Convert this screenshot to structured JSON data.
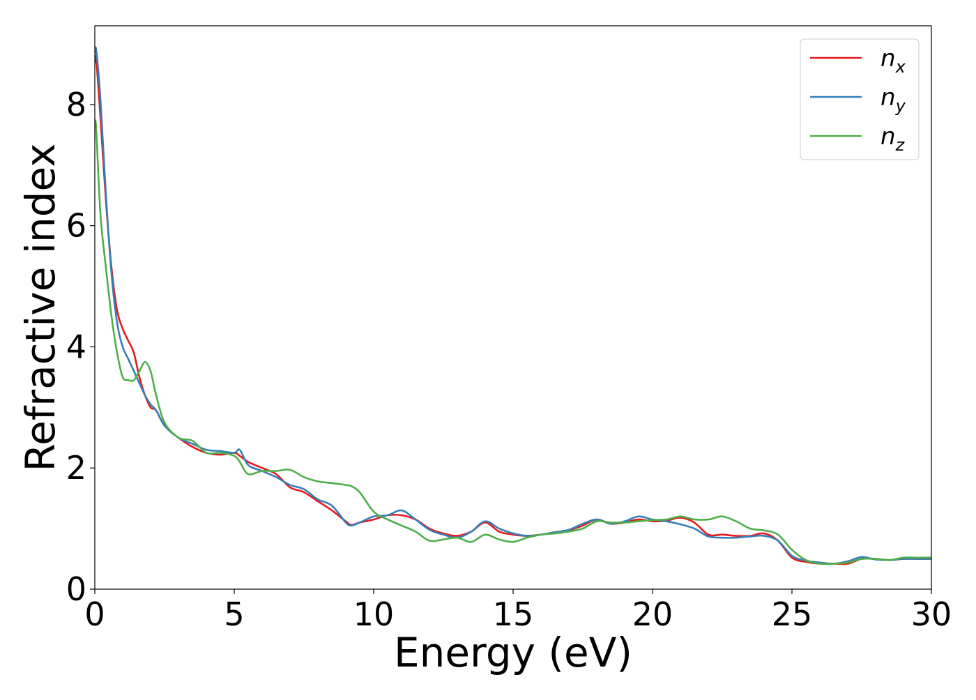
{
  "chart_data": {
    "type": "line",
    "title": "",
    "xlabel": "Energy (eV)",
    "ylabel": "Refractive index",
    "xlim": [
      0,
      30
    ],
    "ylim": [
      0,
      9.3
    ],
    "xticks": [
      0,
      5,
      10,
      15,
      20,
      25,
      30
    ],
    "yticks": [
      0,
      2,
      4,
      6,
      8
    ],
    "grid": false,
    "legend_position": "top-right",
    "series": [
      {
        "name": "n_x",
        "legend_base": "n",
        "legend_sub": "x",
        "color": "#e41a1c",
        "x": [
          0,
          0.05,
          0.2,
          0.4,
          0.6,
          0.8,
          1.0,
          1.2,
          1.4,
          1.6,
          1.8,
          2.0,
          2.2,
          2.5,
          3.0,
          3.5,
          4.0,
          4.5,
          5.0,
          5.2,
          5.5,
          6.0,
          6.5,
          7.0,
          7.5,
          8.0,
          8.5,
          9.0,
          9.2,
          9.5,
          10.0,
          10.5,
          11.0,
          11.5,
          12.0,
          12.5,
          13.0,
          13.5,
          14.0,
          14.5,
          15.0,
          15.5,
          16.0,
          16.5,
          17.0,
          17.5,
          18.0,
          18.5,
          19.0,
          19.5,
          20.0,
          20.5,
          21.0,
          21.5,
          22.0,
          22.5,
          23.0,
          23.5,
          24.0,
          24.5,
          25.0,
          25.5,
          26.0,
          26.5,
          27.0,
          27.5,
          28.0,
          28.5,
          29.0,
          29.5,
          30.0
        ],
        "values": [
          8.7,
          8.75,
          7.8,
          6.4,
          5.3,
          4.6,
          4.3,
          4.1,
          3.9,
          3.5,
          3.2,
          3.0,
          2.95,
          2.7,
          2.5,
          2.35,
          2.25,
          2.22,
          2.25,
          2.2,
          2.1,
          2.0,
          1.9,
          1.68,
          1.6,
          1.45,
          1.3,
          1.12,
          1.06,
          1.1,
          1.15,
          1.22,
          1.22,
          1.15,
          1.0,
          0.92,
          0.88,
          0.95,
          1.1,
          0.95,
          0.9,
          0.88,
          0.9,
          0.93,
          0.97,
          1.05,
          1.15,
          1.08,
          1.1,
          1.15,
          1.12,
          1.13,
          1.18,
          1.1,
          0.9,
          0.9,
          0.88,
          0.88,
          0.92,
          0.8,
          0.52,
          0.45,
          0.42,
          0.42,
          0.42,
          0.5,
          0.5,
          0.48,
          0.5,
          0.5,
          0.5
        ]
      },
      {
        "name": "n_y",
        "legend_base": "n",
        "legend_sub": "y",
        "color": "#377eb8",
        "x": [
          0,
          0.05,
          0.2,
          0.4,
          0.6,
          0.8,
          1.0,
          1.2,
          1.4,
          1.6,
          1.8,
          2.0,
          2.2,
          2.5,
          3.0,
          3.5,
          4.0,
          4.5,
          5.0,
          5.2,
          5.5,
          6.0,
          6.5,
          7.0,
          7.5,
          8.0,
          8.5,
          9.0,
          9.2,
          9.5,
          10.0,
          10.5,
          11.0,
          11.5,
          12.0,
          12.5,
          13.0,
          13.5,
          14.0,
          14.5,
          15.0,
          15.5,
          16.0,
          16.5,
          17.0,
          17.5,
          18.0,
          18.5,
          19.0,
          19.5,
          20.0,
          20.5,
          21.0,
          21.5,
          22.0,
          22.5,
          23.0,
          23.5,
          24.0,
          24.5,
          25.0,
          25.5,
          26.0,
          26.5,
          27.0,
          27.5,
          28.0,
          28.5,
          29.0,
          29.5,
          30.0
        ],
        "values": [
          8.85,
          8.9,
          8.1,
          6.5,
          5.2,
          4.4,
          4.0,
          3.8,
          3.6,
          3.4,
          3.2,
          3.05,
          2.95,
          2.7,
          2.5,
          2.4,
          2.3,
          2.28,
          2.25,
          2.3,
          2.05,
          1.95,
          1.85,
          1.72,
          1.65,
          1.48,
          1.38,
          1.1,
          1.05,
          1.1,
          1.2,
          1.22,
          1.3,
          1.15,
          0.98,
          0.9,
          0.85,
          0.95,
          1.12,
          1.0,
          0.92,
          0.88,
          0.9,
          0.94,
          0.98,
          1.08,
          1.15,
          1.08,
          1.12,
          1.2,
          1.15,
          1.12,
          1.07,
          1.0,
          0.87,
          0.85,
          0.85,
          0.87,
          0.88,
          0.8,
          0.55,
          0.47,
          0.44,
          0.42,
          0.46,
          0.53,
          0.49,
          0.48,
          0.5,
          0.5,
          0.5
        ]
      },
      {
        "name": "n_z",
        "legend_base": "n",
        "legend_sub": "z",
        "color": "#4daf4a",
        "x": [
          0,
          0.05,
          0.2,
          0.4,
          0.6,
          0.8,
          1.0,
          1.2,
          1.4,
          1.6,
          1.8,
          2.0,
          2.2,
          2.5,
          3.0,
          3.5,
          4.0,
          4.5,
          5.0,
          5.2,
          5.5,
          6.0,
          6.5,
          7.0,
          7.5,
          8.0,
          8.5,
          9.0,
          9.2,
          9.5,
          10.0,
          10.5,
          11.0,
          11.5,
          12.0,
          12.5,
          13.0,
          13.5,
          14.0,
          14.5,
          15.0,
          15.5,
          16.0,
          16.5,
          17.0,
          17.5,
          18.0,
          18.5,
          19.0,
          19.5,
          20.0,
          20.5,
          21.0,
          21.5,
          22.0,
          22.5,
          23.0,
          23.5,
          24.0,
          24.5,
          25.0,
          25.5,
          26.0,
          26.5,
          27.0,
          27.5,
          28.0,
          28.5,
          29.0,
          29.5,
          30.0
        ],
        "values": [
          7.7,
          7.6,
          6.2,
          5.3,
          4.5,
          3.9,
          3.5,
          3.45,
          3.45,
          3.6,
          3.75,
          3.6,
          3.2,
          2.75,
          2.5,
          2.45,
          2.25,
          2.25,
          2.2,
          2.1,
          1.9,
          1.95,
          1.95,
          1.97,
          1.85,
          1.78,
          1.75,
          1.72,
          1.7,
          1.6,
          1.28,
          1.15,
          1.05,
          0.95,
          0.8,
          0.82,
          0.85,
          0.78,
          0.9,
          0.82,
          0.78,
          0.85,
          0.9,
          0.92,
          0.95,
          1.0,
          1.12,
          1.1,
          1.1,
          1.12,
          1.14,
          1.15,
          1.2,
          1.15,
          1.15,
          1.2,
          1.12,
          1.0,
          0.97,
          0.9,
          0.65,
          0.48,
          0.42,
          0.42,
          0.44,
          0.5,
          0.5,
          0.48,
          0.52,
          0.52,
          0.52
        ]
      }
    ]
  }
}
